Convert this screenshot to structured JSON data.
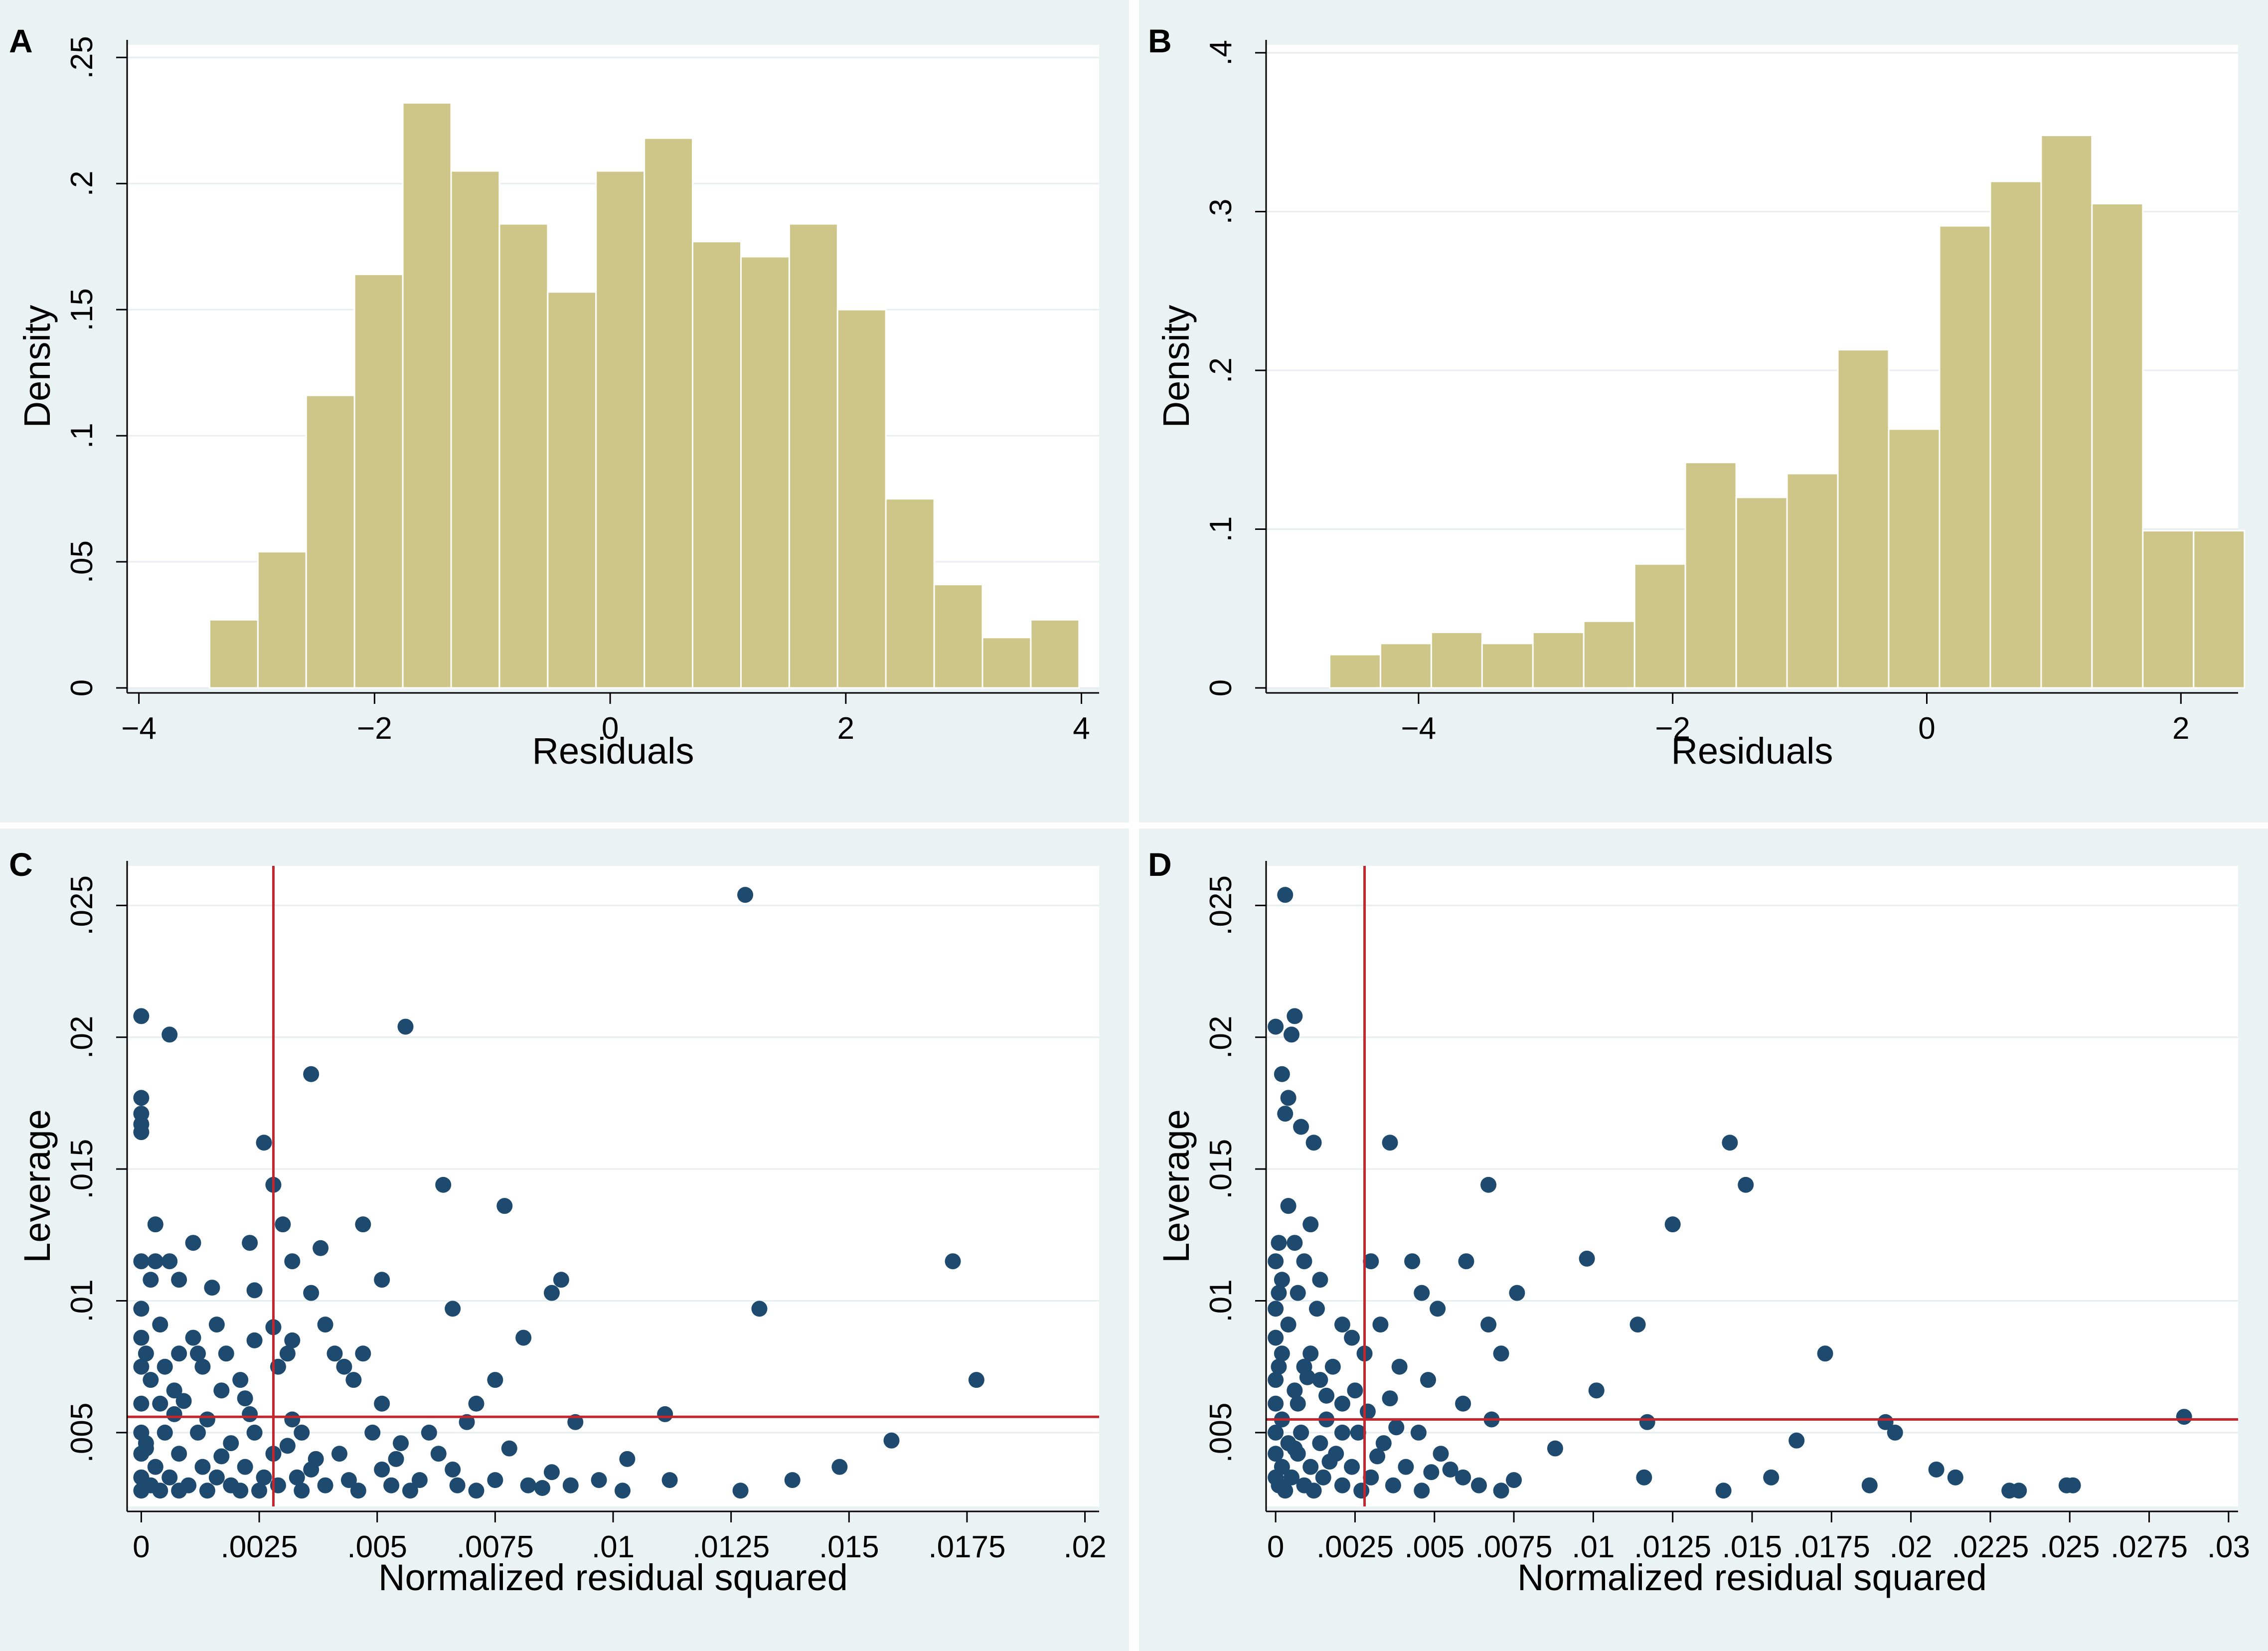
{
  "chart_data": [
    {
      "panel": "A",
      "type": "bar",
      "subtype": "histogram",
      "xlabel": "Residuals",
      "ylabel": "Density",
      "xlim": [
        -4.1,
        4.15
      ],
      "ylim": [
        0,
        0.255
      ],
      "xticks": [
        -4,
        -2,
        0,
        2,
        4
      ],
      "xtick_labels": [
        "−4",
        "−2",
        "0",
        "2",
        "4"
      ],
      "yticks": [
        0,
        0.05,
        0.1,
        0.15,
        0.2,
        0.25
      ],
      "ytick_labels": [
        "0",
        ".05",
        ".1",
        ".15",
        ".2",
        ".25"
      ],
      "bin_edges": [
        -3.4,
        -2.99,
        -2.58,
        -2.17,
        -1.76,
        -1.35,
        -0.94,
        -0.53,
        -0.12,
        0.29,
        0.7,
        1.11,
        1.52,
        1.93,
        2.34,
        2.75,
        3.16,
        3.57,
        3.98
      ],
      "values": [
        0.027,
        0.054,
        0.116,
        0.164,
        0.232,
        0.205,
        0.184,
        0.157,
        0.205,
        0.218,
        0.177,
        0.171,
        0.184,
        0.15,
        0.075,
        0.041,
        0.02,
        0.027
      ]
    },
    {
      "panel": "B",
      "type": "bar",
      "subtype": "histogram",
      "xlabel": "Residuals",
      "ylabel": "Density",
      "xlim": [
        -5.2,
        2.45
      ],
      "ylim": [
        0,
        0.405
      ],
      "xticks": [
        -4,
        -2,
        0,
        2
      ],
      "xtick_labels": [
        "−4",
        "−2",
        "0",
        "2"
      ],
      "yticks": [
        0,
        0.1,
        0.2,
        0.3,
        0.4
      ],
      "ytick_labels": [
        "0",
        ".1",
        ".2",
        ".3",
        ".4"
      ],
      "bin_edges": [
        -4.7,
        -4.3,
        -3.9,
        -3.5,
        -3.1,
        -2.7,
        -2.3,
        -1.9,
        -1.5,
        -1.1,
        -0.7,
        -0.3,
        0.1,
        0.5,
        0.9,
        1.3,
        1.7,
        2.1,
        2.5
      ],
      "values": [
        0.021,
        0.028,
        0.035,
        0.028,
        0.035,
        0.042,
        0.078,
        0.142,
        0.12,
        0.135,
        0.213,
        0.163,
        0.291,
        0.319,
        0.348,
        0.305,
        0.099,
        0.099
      ]
    },
    {
      "panel": "C",
      "type": "scatter",
      "xlabel": "Normalized residual squared",
      "ylabel": "Leverage",
      "xlim": [
        -0.0003,
        0.0203
      ],
      "ylim": [
        0.0022,
        0.0265
      ],
      "xticks": [
        0,
        0.0025,
        0.005,
        0.0075,
        0.01,
        0.0125,
        0.015,
        0.0175,
        0.02
      ],
      "xtick_labels": [
        "0",
        ".0025",
        ".005",
        ".0075",
        ".01",
        ".0125",
        ".015",
        ".0175",
        ".02"
      ],
      "yticks": [
        0.005,
        0.01,
        0.015,
        0.02,
        0.025
      ],
      "ytick_labels": [
        ".005",
        ".01",
        ".015",
        ".02",
        ".025"
      ],
      "ref_lines": {
        "x": 0.0028,
        "y": 0.0056
      },
      "points": [
        [
          0.0128,
          0.0254
        ],
        [
          0.0,
          0.0208
        ],
        [
          0.0056,
          0.0204
        ],
        [
          0.0006,
          0.0201
        ],
        [
          0.0036,
          0.0186
        ],
        [
          0.0,
          0.0177
        ],
        [
          0.0,
          0.0171
        ],
        [
          0.0,
          0.0167
        ],
        [
          0.0,
          0.0164
        ],
        [
          0.0026,
          0.016
        ],
        [
          0.0028,
          0.0144
        ],
        [
          0.0064,
          0.0144
        ],
        [
          0.0077,
          0.0136
        ],
        [
          0.0003,
          0.0129
        ],
        [
          0.003,
          0.0129
        ],
        [
          0.0047,
          0.0129
        ],
        [
          0.0011,
          0.0122
        ],
        [
          0.0023,
          0.0122
        ],
        [
          0.0038,
          0.012
        ],
        [
          0.0,
          0.0115
        ],
        [
          0.0003,
          0.0115
        ],
        [
          0.0006,
          0.0115
        ],
        [
          0.0032,
          0.0115
        ],
        [
          0.0172,
          0.0115
        ],
        [
          0.0002,
          0.0108
        ],
        [
          0.0008,
          0.0108
        ],
        [
          0.0051,
          0.0108
        ],
        [
          0.0089,
          0.0108
        ],
        [
          0.0015,
          0.0105
        ],
        [
          0.0024,
          0.0104
        ],
        [
          0.0036,
          0.0103
        ],
        [
          0.0087,
          0.0103
        ],
        [
          0.0,
          0.0097
        ],
        [
          0.0066,
          0.0097
        ],
        [
          0.0131,
          0.0097
        ],
        [
          0.0004,
          0.0091
        ],
        [
          0.0016,
          0.0091
        ],
        [
          0.0028,
          0.009
        ],
        [
          0.0039,
          0.0091
        ],
        [
          0.0081,
          0.0086
        ],
        [
          0.0,
          0.0086
        ],
        [
          0.0011,
          0.0086
        ],
        [
          0.0024,
          0.0085
        ],
        [
          0.0032,
          0.0085
        ],
        [
          0.0001,
          0.008
        ],
        [
          0.0008,
          0.008
        ],
        [
          0.0012,
          0.008
        ],
        [
          0.0018,
          0.008
        ],
        [
          0.0031,
          0.008
        ],
        [
          0.0041,
          0.008
        ],
        [
          0.0047,
          0.008
        ],
        [
          0.0,
          0.0075
        ],
        [
          0.0005,
          0.0075
        ],
        [
          0.0013,
          0.0075
        ],
        [
          0.0029,
          0.0075
        ],
        [
          0.0043,
          0.0075
        ],
        [
          0.0002,
          0.007
        ],
        [
          0.0021,
          0.007
        ],
        [
          0.0045,
          0.007
        ],
        [
          0.0075,
          0.007
        ],
        [
          0.0177,
          0.007
        ],
        [
          0.0007,
          0.0066
        ],
        [
          0.0017,
          0.0066
        ],
        [
          0.0022,
          0.0063
        ],
        [
          0.0051,
          0.0061
        ],
        [
          0.0071,
          0.0061
        ],
        [
          0.0,
          0.0061
        ],
        [
          0.0004,
          0.0061
        ],
        [
          0.0111,
          0.0057
        ],
        [
          0.0014,
          0.0055
        ],
        [
          0.0032,
          0.0055
        ],
        [
          0.0092,
          0.0054
        ],
        [
          0.0069,
          0.0054
        ],
        [
          0.0,
          0.005
        ],
        [
          0.0005,
          0.005
        ],
        [
          0.0012,
          0.005
        ],
        [
          0.0024,
          0.005
        ],
        [
          0.0034,
          0.005
        ],
        [
          0.0049,
          0.005
        ],
        [
          0.0061,
          0.005
        ],
        [
          0.0159,
          0.0047
        ],
        [
          0.0001,
          0.0046
        ],
        [
          0.0019,
          0.0046
        ],
        [
          0.0055,
          0.0046
        ],
        [
          0.0078,
          0.0044
        ],
        [
          0.0,
          0.0042
        ],
        [
          0.0008,
          0.0042
        ],
        [
          0.0028,
          0.0042
        ],
        [
          0.0042,
          0.0042
        ],
        [
          0.0063,
          0.0042
        ],
        [
          0.0103,
          0.004
        ],
        [
          0.0148,
          0.0037
        ],
        [
          0.0003,
          0.0037
        ],
        [
          0.0013,
          0.0037
        ],
        [
          0.0022,
          0.0037
        ],
        [
          0.0036,
          0.0036
        ],
        [
          0.0051,
          0.0036
        ],
        [
          0.0066,
          0.0036
        ],
        [
          0.0087,
          0.0035
        ],
        [
          0.0,
          0.0033
        ],
        [
          0.0006,
          0.0033
        ],
        [
          0.0016,
          0.0033
        ],
        [
          0.0026,
          0.0033
        ],
        [
          0.0033,
          0.0033
        ],
        [
          0.0044,
          0.0032
        ],
        [
          0.0059,
          0.0032
        ],
        [
          0.0075,
          0.0032
        ],
        [
          0.0097,
          0.0032
        ],
        [
          0.0112,
          0.0032
        ],
        [
          0.0138,
          0.0032
        ],
        [
          0.0002,
          0.003
        ],
        [
          0.001,
          0.003
        ],
        [
          0.0019,
          0.003
        ],
        [
          0.0029,
          0.003
        ],
        [
          0.0039,
          0.003
        ],
        [
          0.0053,
          0.003
        ],
        [
          0.0067,
          0.003
        ],
        [
          0.0082,
          0.003
        ],
        [
          0.0091,
          0.003
        ],
        [
          0.0,
          0.0028
        ],
        [
          0.0004,
          0.0028
        ],
        [
          0.0008,
          0.0028
        ],
        [
          0.0014,
          0.0028
        ],
        [
          0.0021,
          0.0028
        ],
        [
          0.0025,
          0.0028
        ],
        [
          0.0034,
          0.0028
        ],
        [
          0.0046,
          0.0028
        ],
        [
          0.0057,
          0.0028
        ],
        [
          0.0071,
          0.0028
        ],
        [
          0.0085,
          0.0029
        ],
        [
          0.0102,
          0.0028
        ],
        [
          0.0127,
          0.0028
        ],
        [
          0.0001,
          0.0044
        ],
        [
          0.0007,
          0.0057
        ],
        [
          0.0017,
          0.0041
        ],
        [
          0.0031,
          0.0045
        ],
        [
          0.0037,
          0.004
        ],
        [
          0.0054,
          0.004
        ],
        [
          0.0023,
          0.0057
        ],
        [
          0.0009,
          0.0062
        ]
      ]
    },
    {
      "panel": "D",
      "type": "scatter",
      "xlabel": "Normalized residual squared",
      "ylabel": "Leverage",
      "xlim": [
        -0.0003,
        0.0303
      ],
      "ylim": [
        0.0022,
        0.0265
      ],
      "xticks": [
        0,
        0.0025,
        0.005,
        0.0075,
        0.01,
        0.0125,
        0.015,
        0.0175,
        0.02,
        0.0225,
        0.025,
        0.0275,
        0.03
      ],
      "xtick_labels": [
        "0",
        ".0025",
        ".005",
        ".0075",
        ".01",
        ".0125",
        ".015",
        ".0175",
        ".02",
        ".0225",
        ".025",
        ".0275",
        ".03"
      ],
      "yticks": [
        0.005,
        0.01,
        0.015,
        0.02,
        0.025
      ],
      "ytick_labels": [
        ".005",
        ".01",
        ".015",
        ".02",
        ".025"
      ],
      "ref_lines": {
        "x": 0.0028,
        "y": 0.0055
      },
      "points": [
        [
          0.0003,
          0.0254
        ],
        [
          0.0,
          0.0204
        ],
        [
          0.0006,
          0.0208
        ],
        [
          0.0005,
          0.0201
        ],
        [
          0.0002,
          0.0186
        ],
        [
          0.0004,
          0.0177
        ],
        [
          0.0003,
          0.0171
        ],
        [
          0.0008,
          0.0166
        ],
        [
          0.0012,
          0.016
        ],
        [
          0.0036,
          0.016
        ],
        [
          0.0143,
          0.016
        ],
        [
          0.0148,
          0.0144
        ],
        [
          0.0067,
          0.0144
        ],
        [
          0.0004,
          0.0136
        ],
        [
          0.0011,
          0.0129
        ],
        [
          0.0125,
          0.0129
        ],
        [
          0.0001,
          0.0122
        ],
        [
          0.0006,
          0.0122
        ],
        [
          0.0098,
          0.0116
        ],
        [
          0.003,
          0.0115
        ],
        [
          0.0043,
          0.0115
        ],
        [
          0.006,
          0.0115
        ],
        [
          0.0,
          0.0115
        ],
        [
          0.0009,
          0.0115
        ],
        [
          0.0002,
          0.0108
        ],
        [
          0.0014,
          0.0108
        ],
        [
          0.0046,
          0.0103
        ],
        [
          0.0076,
          0.0103
        ],
        [
          0.0001,
          0.0103
        ],
        [
          0.0007,
          0.0103
        ],
        [
          0.0,
          0.0097
        ],
        [
          0.0013,
          0.0097
        ],
        [
          0.0051,
          0.0097
        ],
        [
          0.0033,
          0.0091
        ],
        [
          0.0067,
          0.0091
        ],
        [
          0.0114,
          0.0091
        ],
        [
          0.0004,
          0.0091
        ],
        [
          0.0021,
          0.0091
        ],
        [
          0.0,
          0.0086
        ],
        [
          0.0024,
          0.0086
        ],
        [
          0.0002,
          0.008
        ],
        [
          0.0011,
          0.008
        ],
        [
          0.0028,
          0.008
        ],
        [
          0.0071,
          0.008
        ],
        [
          0.0173,
          0.008
        ],
        [
          0.0001,
          0.0075
        ],
        [
          0.0009,
          0.0075
        ],
        [
          0.0018,
          0.0075
        ],
        [
          0.0039,
          0.0075
        ],
        [
          0.0,
          0.007
        ],
        [
          0.0014,
          0.007
        ],
        [
          0.0048,
          0.007
        ],
        [
          0.0006,
          0.0066
        ],
        [
          0.0101,
          0.0066
        ],
        [
          0.0025,
          0.0066
        ],
        [
          0.0,
          0.0061
        ],
        [
          0.0007,
          0.0061
        ],
        [
          0.0021,
          0.0061
        ],
        [
          0.0059,
          0.0061
        ],
        [
          0.0036,
          0.0063
        ],
        [
          0.0286,
          0.0056
        ],
        [
          0.0002,
          0.0055
        ],
        [
          0.0016,
          0.0055
        ],
        [
          0.0068,
          0.0055
        ],
        [
          0.0117,
          0.0054
        ],
        [
          0.0192,
          0.0054
        ],
        [
          0.0195,
          0.005
        ],
        [
          0.0,
          0.005
        ],
        [
          0.0008,
          0.005
        ],
        [
          0.0026,
          0.005
        ],
        [
          0.0045,
          0.005
        ],
        [
          0.0164,
          0.0047
        ],
        [
          0.0004,
          0.0046
        ],
        [
          0.0014,
          0.0046
        ],
        [
          0.0034,
          0.0046
        ],
        [
          0.0088,
          0.0044
        ],
        [
          0.0,
          0.0042
        ],
        [
          0.0007,
          0.0042
        ],
        [
          0.0019,
          0.0042
        ],
        [
          0.0052,
          0.0042
        ],
        [
          0.0002,
          0.0037
        ],
        [
          0.0011,
          0.0037
        ],
        [
          0.0024,
          0.0037
        ],
        [
          0.0041,
          0.0037
        ],
        [
          0.0208,
          0.0036
        ],
        [
          0.0,
          0.0033
        ],
        [
          0.0005,
          0.0033
        ],
        [
          0.0015,
          0.0033
        ],
        [
          0.003,
          0.0033
        ],
        [
          0.0059,
          0.0033
        ],
        [
          0.0116,
          0.0033
        ],
        [
          0.0156,
          0.0033
        ],
        [
          0.0214,
          0.0033
        ],
        [
          0.0001,
          0.003
        ],
        [
          0.0009,
          0.003
        ],
        [
          0.0021,
          0.003
        ],
        [
          0.0037,
          0.003
        ],
        [
          0.0064,
          0.003
        ],
        [
          0.0075,
          0.0032
        ],
        [
          0.0187,
          0.003
        ],
        [
          0.0249,
          0.003
        ],
        [
          0.0003,
          0.0028
        ],
        [
          0.0012,
          0.0028
        ],
        [
          0.0027,
          0.0028
        ],
        [
          0.0046,
          0.0028
        ],
        [
          0.0071,
          0.0028
        ],
        [
          0.0141,
          0.0028
        ],
        [
          0.0231,
          0.0028
        ],
        [
          0.0234,
          0.0028
        ],
        [
          0.0251,
          0.003
        ],
        [
          0.0006,
          0.0044
        ],
        [
          0.0017,
          0.0039
        ],
        [
          0.0032,
          0.0041
        ],
        [
          0.0049,
          0.0035
        ],
        [
          0.0016,
          0.0064
        ],
        [
          0.0038,
          0.0052
        ],
        [
          0.0055,
          0.0036
        ],
        [
          0.0029,
          0.0058
        ],
        [
          0.001,
          0.0071
        ],
        [
          0.0021,
          0.005
        ]
      ]
    }
  ]
}
